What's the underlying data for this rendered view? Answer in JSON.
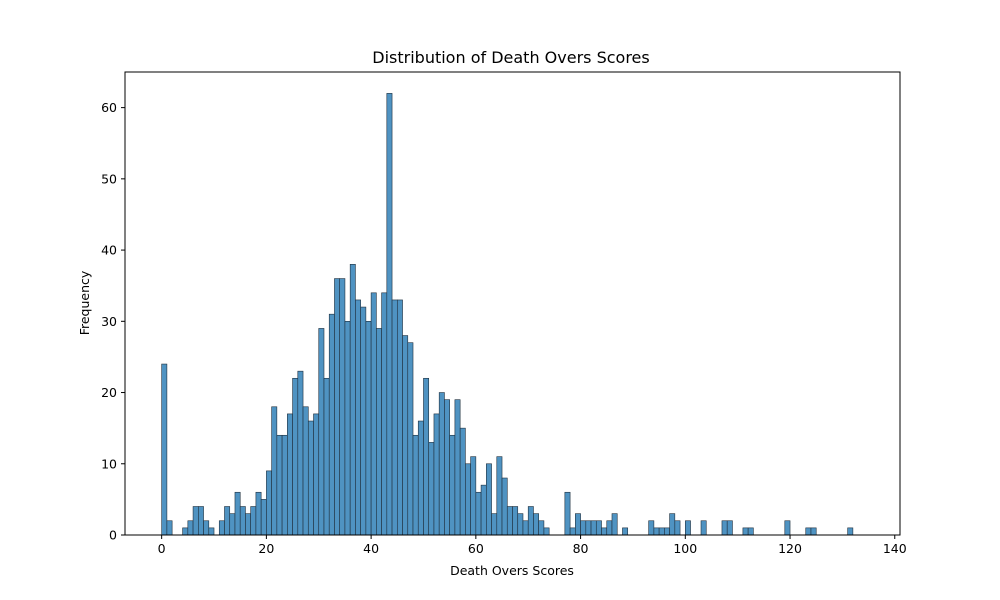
{
  "chart_data": {
    "type": "bar",
    "title": "Distribution of Death Overs Scores",
    "xlabel": "Death Overs Scores",
    "ylabel": "Frequency",
    "xlim": [
      -7,
      141
    ],
    "ylim": [
      0,
      65
    ],
    "bin_width": 1,
    "xticks": [
      0,
      20,
      40,
      60,
      80,
      100,
      120,
      140
    ],
    "yticks": [
      0,
      10,
      20,
      30,
      40,
      50,
      60
    ],
    "bar_color": "#4f93c2",
    "edge_color": "#1f2f3d",
    "bins": [
      {
        "x": 0,
        "count": 24
      },
      {
        "x": 1,
        "count": 2
      },
      {
        "x": 4,
        "count": 1
      },
      {
        "x": 5,
        "count": 2
      },
      {
        "x": 6,
        "count": 4
      },
      {
        "x": 7,
        "count": 4
      },
      {
        "x": 8,
        "count": 2
      },
      {
        "x": 9,
        "count": 1
      },
      {
        "x": 11,
        "count": 2
      },
      {
        "x": 12,
        "count": 4
      },
      {
        "x": 13,
        "count": 3
      },
      {
        "x": 14,
        "count": 6
      },
      {
        "x": 15,
        "count": 4
      },
      {
        "x": 16,
        "count": 3
      },
      {
        "x": 17,
        "count": 4
      },
      {
        "x": 18,
        "count": 6
      },
      {
        "x": 19,
        "count": 5
      },
      {
        "x": 20,
        "count": 9
      },
      {
        "x": 21,
        "count": 18
      },
      {
        "x": 22,
        "count": 14
      },
      {
        "x": 23,
        "count": 14
      },
      {
        "x": 24,
        "count": 17
      },
      {
        "x": 25,
        "count": 22
      },
      {
        "x": 26,
        "count": 23
      },
      {
        "x": 27,
        "count": 18
      },
      {
        "x": 28,
        "count": 16
      },
      {
        "x": 29,
        "count": 17
      },
      {
        "x": 30,
        "count": 29
      },
      {
        "x": 31,
        "count": 22
      },
      {
        "x": 32,
        "count": 31
      },
      {
        "x": 33,
        "count": 36
      },
      {
        "x": 34,
        "count": 36
      },
      {
        "x": 35,
        "count": 30
      },
      {
        "x": 36,
        "count": 38
      },
      {
        "x": 37,
        "count": 33
      },
      {
        "x": 38,
        "count": 32
      },
      {
        "x": 39,
        "count": 30
      },
      {
        "x": 40,
        "count": 34
      },
      {
        "x": 41,
        "count": 29
      },
      {
        "x": 42,
        "count": 34
      },
      {
        "x": 43,
        "count": 62
      },
      {
        "x": 44,
        "count": 33
      },
      {
        "x": 45,
        "count": 33
      },
      {
        "x": 46,
        "count": 28
      },
      {
        "x": 47,
        "count": 27
      },
      {
        "x": 48,
        "count": 14
      },
      {
        "x": 49,
        "count": 16
      },
      {
        "x": 50,
        "count": 22
      },
      {
        "x": 51,
        "count": 13
      },
      {
        "x": 52,
        "count": 17
      },
      {
        "x": 53,
        "count": 20
      },
      {
        "x": 54,
        "count": 19
      },
      {
        "x": 55,
        "count": 14
      },
      {
        "x": 56,
        "count": 19
      },
      {
        "x": 57,
        "count": 15
      },
      {
        "x": 58,
        "count": 10
      },
      {
        "x": 59,
        "count": 11
      },
      {
        "x": 60,
        "count": 6
      },
      {
        "x": 61,
        "count": 7
      },
      {
        "x": 62,
        "count": 10
      },
      {
        "x": 63,
        "count": 3
      },
      {
        "x": 64,
        "count": 11
      },
      {
        "x": 65,
        "count": 8
      },
      {
        "x": 66,
        "count": 4
      },
      {
        "x": 67,
        "count": 4
      },
      {
        "x": 68,
        "count": 3
      },
      {
        "x": 69,
        "count": 2
      },
      {
        "x": 70,
        "count": 4
      },
      {
        "x": 71,
        "count": 3
      },
      {
        "x": 72,
        "count": 2
      },
      {
        "x": 73,
        "count": 1
      },
      {
        "x": 77,
        "count": 6
      },
      {
        "x": 78,
        "count": 1
      },
      {
        "x": 79,
        "count": 3
      },
      {
        "x": 80,
        "count": 2
      },
      {
        "x": 81,
        "count": 2
      },
      {
        "x": 82,
        "count": 2
      },
      {
        "x": 83,
        "count": 2
      },
      {
        "x": 84,
        "count": 1
      },
      {
        "x": 85,
        "count": 2
      },
      {
        "x": 86,
        "count": 3
      },
      {
        "x": 88,
        "count": 1
      },
      {
        "x": 93,
        "count": 2
      },
      {
        "x": 94,
        "count": 1
      },
      {
        "x": 95,
        "count": 1
      },
      {
        "x": 96,
        "count": 1
      },
      {
        "x": 97,
        "count": 3
      },
      {
        "x": 98,
        "count": 2
      },
      {
        "x": 100,
        "count": 2
      },
      {
        "x": 103,
        "count": 2
      },
      {
        "x": 107,
        "count": 2
      },
      {
        "x": 108,
        "count": 2
      },
      {
        "x": 111,
        "count": 1
      },
      {
        "x": 112,
        "count": 1
      },
      {
        "x": 119,
        "count": 2
      },
      {
        "x": 123,
        "count": 1
      },
      {
        "x": 124,
        "count": 1
      },
      {
        "x": 131,
        "count": 1
      }
    ]
  }
}
